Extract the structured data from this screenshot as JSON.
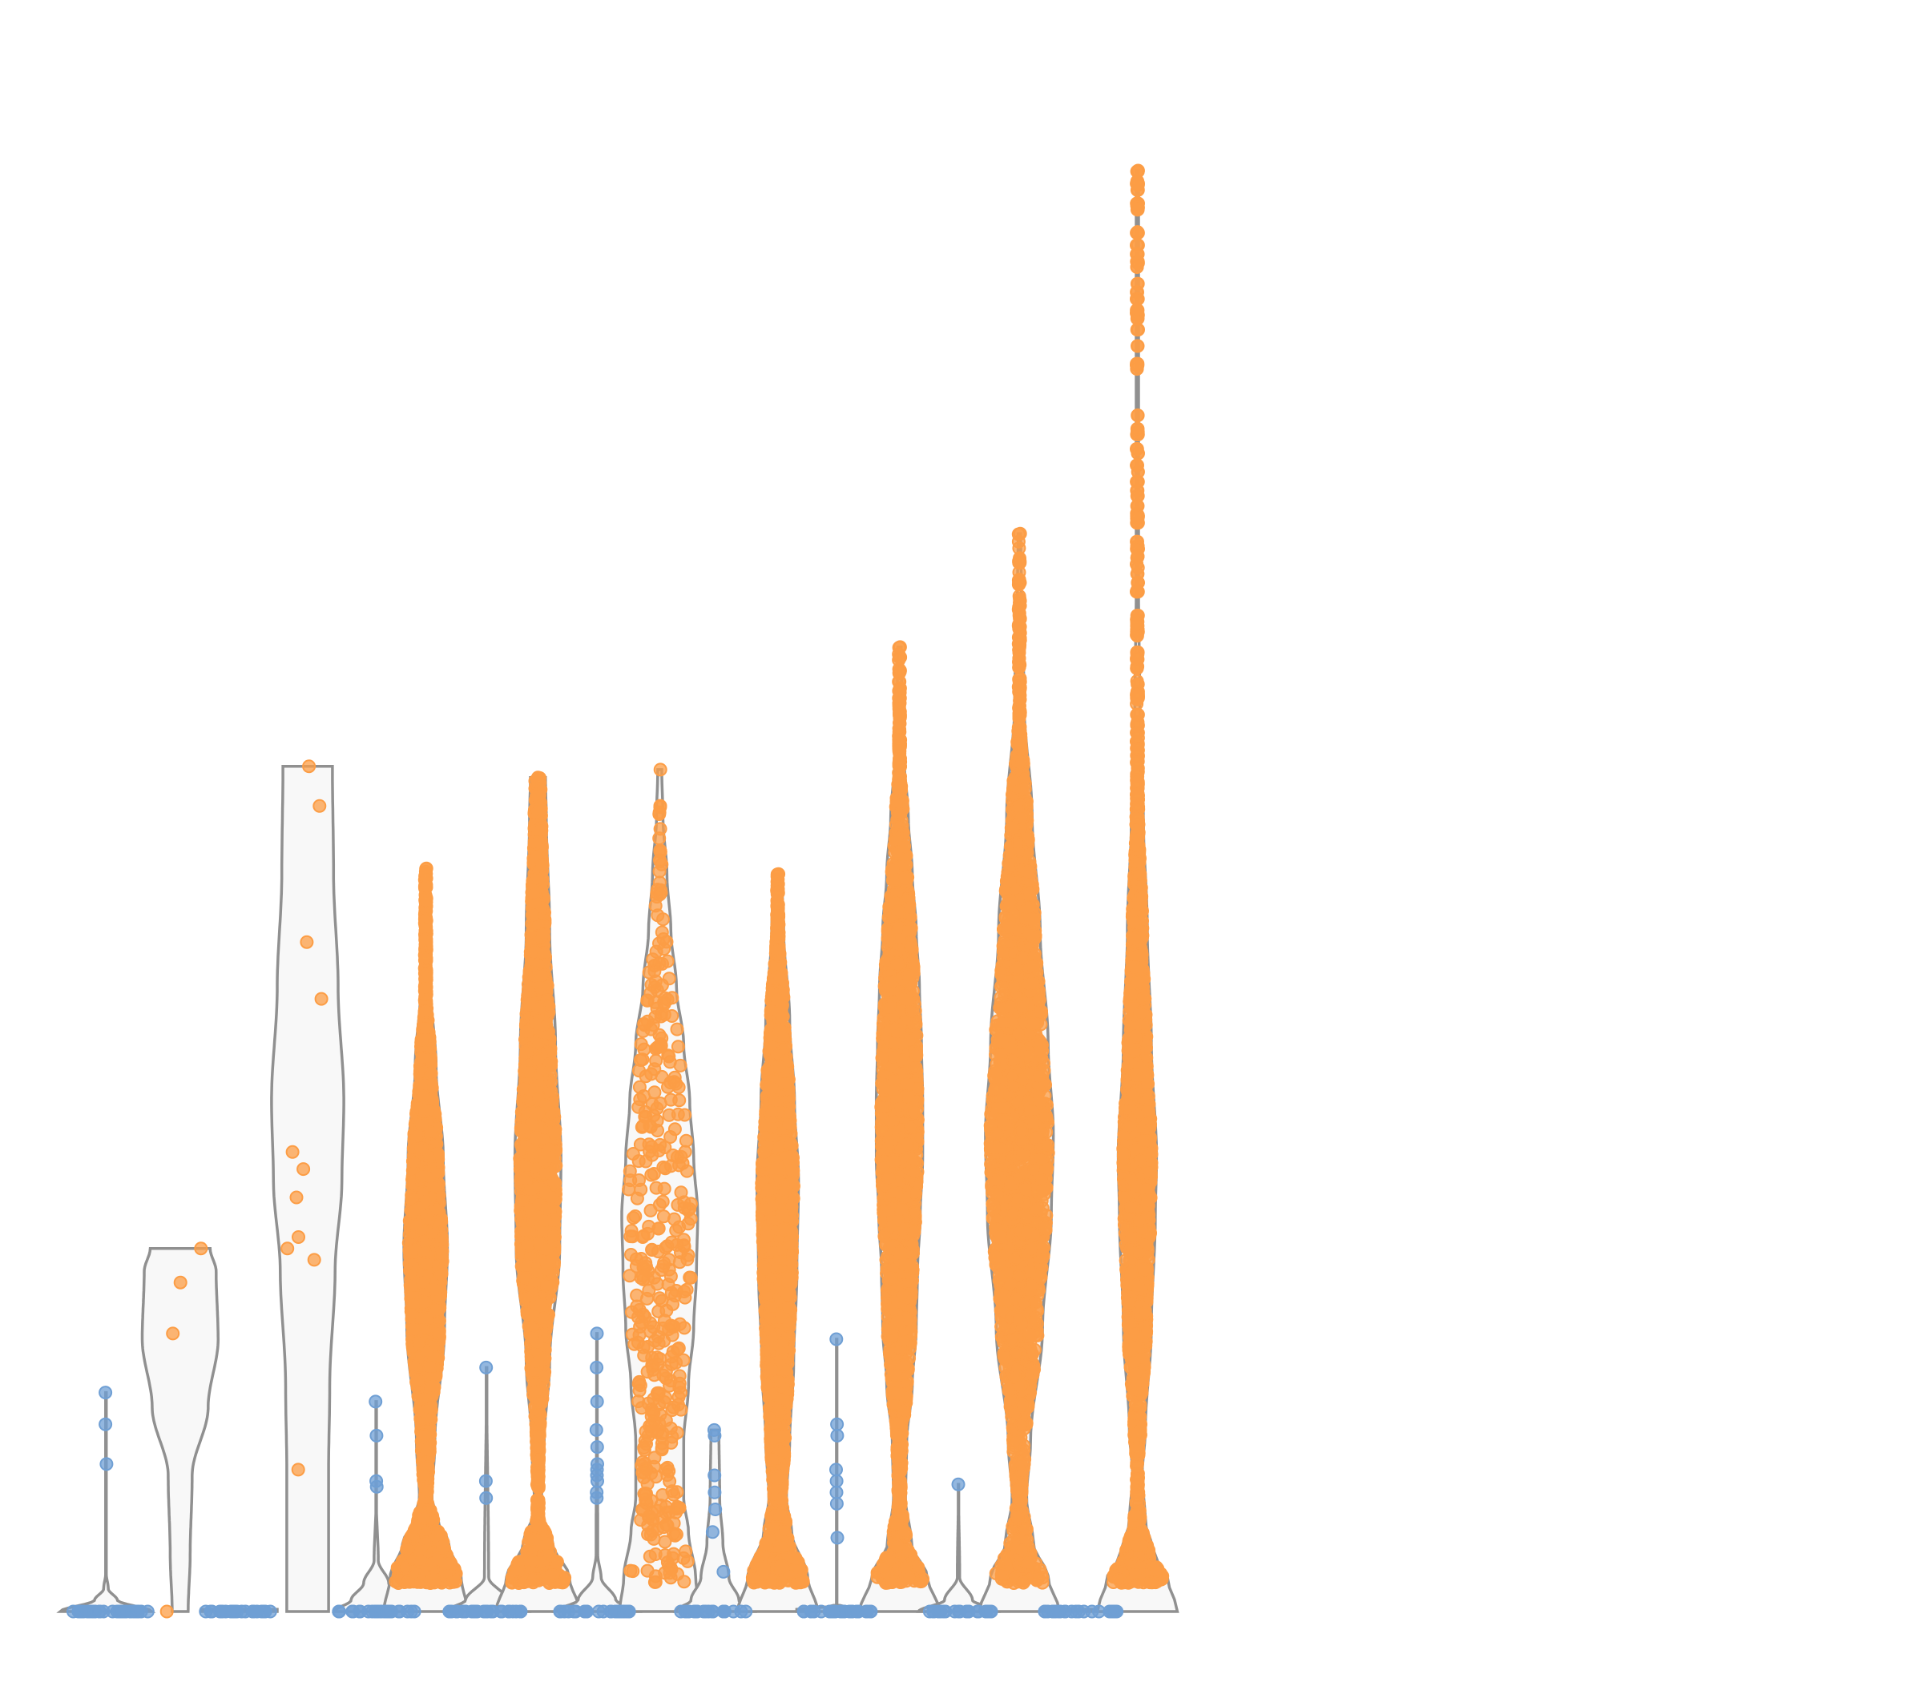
{
  "chart_data": {
    "type": "violin",
    "title": "",
    "xlabel": "",
    "ylabel": "",
    "ylim": [
      0,
      13
    ],
    "grid": false,
    "legend": "none",
    "colors": {
      "blue": "#6f9fd4",
      "orange": "#fc9d45"
    },
    "groups": [
      {
        "center": 1.1,
        "half_width": 1.2,
        "max": 1.93,
        "kde": [
          [
            0,
            1.0
          ],
          [
            0.1,
            0.25
          ],
          [
            0.2,
            0.05
          ],
          [
            0.35,
            0.0
          ],
          [
            1.93,
            0.0
          ]
        ],
        "color": "blue",
        "points": [
          0,
          0,
          0,
          0,
          0,
          0,
          0,
          0,
          0,
          0,
          0,
          0,
          0,
          0,
          0,
          0,
          0,
          0,
          0,
          0,
          0,
          0,
          0,
          0,
          0,
          0,
          0,
          0,
          0,
          0,
          1.3,
          1.65,
          1.93
        ]
      },
      {
        "center": 3.05,
        "half_width": 1.05,
        "max": 3.2,
        "kde": [
          [
            0,
            0.2
          ],
          [
            0.5,
            0.25
          ],
          [
            1.2,
            0.3
          ],
          [
            1.8,
            0.7
          ],
          [
            2.4,
            0.95
          ],
          [
            3.0,
            0.9
          ],
          [
            3.2,
            0.75
          ]
        ],
        "color": "orange",
        "points": [
          0,
          2.45,
          2.9,
          3.2
        ]
      },
      {
        "center": 4.6,
        "half_width": 1.0,
        "max": 0.02,
        "kde": [
          [
            0,
            1.0
          ],
          [
            0.02,
            1.0
          ]
        ],
        "color": "blue",
        "points": [
          0,
          0,
          0,
          0,
          0,
          0,
          0,
          0,
          0,
          0,
          0,
          0,
          0,
          0,
          0,
          0,
          0,
          0,
          0,
          0,
          0,
          0,
          0,
          0
        ]
      },
      {
        "center": 6.4,
        "half_width": 1.0,
        "max": 7.45,
        "kde": [
          [
            1.25,
            0.55
          ],
          [
            2.0,
            0.58
          ],
          [
            3.0,
            0.72
          ],
          [
            3.8,
            0.9
          ],
          [
            4.5,
            0.95
          ],
          [
            5.5,
            0.8
          ],
          [
            6.5,
            0.68
          ],
          [
            7.45,
            0.65
          ]
        ],
        "color": "orange",
        "points": [
          1.25,
          3.1,
          3.2,
          3.3,
          3.65,
          3.9,
          4.05,
          5.4,
          5.9,
          7.45,
          7.1
        ]
      },
      {
        "center": 8.2,
        "half_width": 1.1,
        "max": 1.85,
        "kde": [
          [
            0,
            1.0
          ],
          [
            0.1,
            0.6
          ],
          [
            0.25,
            0.3
          ],
          [
            0.45,
            0.05
          ],
          [
            1.0,
            0.0
          ],
          [
            1.85,
            0.0
          ]
        ],
        "color": "blue",
        "points": [
          0,
          0,
          0,
          0,
          0,
          0,
          0,
          0,
          0,
          0,
          0,
          0,
          0,
          0,
          0,
          0,
          0,
          0,
          0,
          0,
          0,
          0,
          0,
          0,
          0,
          0,
          0,
          1.1,
          1.15,
          1.55,
          1.85
        ]
      },
      {
        "center": 9.5,
        "half_width": 1.1,
        "max": 6.55,
        "kde": [
          [
            0,
            1.0
          ],
          [
            0.3,
            0.85
          ],
          [
            0.6,
            0.55
          ],
          [
            0.8,
            0.3
          ],
          [
            1.0,
            0.15
          ],
          [
            1.5,
            0.22
          ],
          [
            2.5,
            0.45
          ],
          [
            3.2,
            0.52
          ],
          [
            4.0,
            0.42
          ],
          [
            4.8,
            0.25
          ],
          [
            5.5,
            0.12
          ],
          [
            6.0,
            0.08
          ],
          [
            6.55,
            0.05
          ]
        ],
        "color": "orange",
        "points": "dense"
      },
      {
        "center": 11.1,
        "half_width": 1.1,
        "max": 2.15,
        "kde": [
          [
            0,
            1.0
          ],
          [
            0.1,
            0.5
          ],
          [
            0.3,
            0.05
          ],
          [
            2.15,
            0.0
          ]
        ],
        "color": "blue",
        "points": [
          0,
          0,
          0,
          0,
          0,
          0,
          0,
          0,
          0,
          0,
          0,
          0,
          0,
          0,
          0,
          0,
          0,
          0,
          0,
          0,
          0,
          0,
          0,
          0,
          0,
          0,
          0,
          1.0,
          1.15,
          2.15
        ]
      },
      {
        "center": 12.45,
        "half_width": 1.1,
        "max": 7.35,
        "kde": [
          [
            0,
            1.0
          ],
          [
            0.3,
            0.75
          ],
          [
            0.6,
            0.35
          ],
          [
            0.9,
            0.08
          ],
          [
            1.5,
            0.15
          ],
          [
            2.2,
            0.28
          ],
          [
            3.2,
            0.52
          ],
          [
            4.0,
            0.55
          ],
          [
            5.0,
            0.42
          ],
          [
            6.0,
            0.28
          ],
          [
            7.0,
            0.2
          ],
          [
            7.35,
            0.18
          ]
        ],
        "color": "orange",
        "points": "dense"
      },
      {
        "center": 14.0,
        "half_width": 1.1,
        "max": 2.45,
        "kde": [
          [
            0,
            1.0
          ],
          [
            0.1,
            0.45
          ],
          [
            0.3,
            0.1
          ],
          [
            0.5,
            0.02
          ],
          [
            2.45,
            0.0
          ]
        ],
        "color": "blue",
        "points": [
          0,
          0,
          0,
          0,
          0,
          0,
          0,
          0,
          0,
          0,
          0,
          0,
          0,
          0,
          0,
          0,
          0,
          0,
          0,
          0,
          0,
          0,
          0,
          0,
          0,
          0,
          0,
          1.0,
          1.05,
          1.15,
          1.2,
          1.25,
          1.3,
          1.45,
          1.6,
          1.85,
          2.15,
          2.45
        ]
      },
      {
        "center": 15.65,
        "half_width": 1.05,
        "max": 7.42,
        "kde": [
          [
            0,
            1.0
          ],
          [
            0.3,
            0.9
          ],
          [
            0.7,
            0.72
          ],
          [
            1.0,
            0.6
          ],
          [
            1.5,
            0.6
          ],
          [
            2.0,
            0.72
          ],
          [
            2.5,
            0.85
          ],
          [
            3.0,
            0.92
          ],
          [
            3.5,
            0.95
          ],
          [
            4.0,
            0.85
          ],
          [
            4.5,
            0.75
          ],
          [
            5.0,
            0.6
          ],
          [
            5.5,
            0.42
          ],
          [
            6.0,
            0.28
          ],
          [
            6.5,
            0.18
          ],
          [
            7.0,
            0.08
          ],
          [
            7.42,
            0.05
          ]
        ],
        "color": "orange",
        "points": "dense-sparse"
      },
      {
        "center": 17.1,
        "half_width": 1.05,
        "max": 1.6,
        "kde": [
          [
            0,
            1.0
          ],
          [
            0.1,
            0.6
          ],
          [
            0.3,
            0.35
          ],
          [
            0.6,
            0.2
          ],
          [
            1.0,
            0.12
          ],
          [
            1.6,
            0.1
          ]
        ],
        "color": "blue",
        "points": [
          0,
          0,
          0,
          0,
          0,
          0,
          0,
          0,
          0,
          0,
          0,
          0,
          0,
          0,
          0,
          0,
          0,
          0,
          0,
          0,
          0,
          0.35,
          0.7,
          0.9,
          1.05,
          1.2,
          1.55,
          1.6
        ]
      },
      {
        "center": 18.75,
        "half_width": 1.05,
        "max": 6.5,
        "kde": [
          [
            0,
            1.0
          ],
          [
            0.3,
            0.75
          ],
          [
            0.7,
            0.35
          ],
          [
            1.0,
            0.22
          ],
          [
            1.5,
            0.3
          ],
          [
            2.2,
            0.4
          ],
          [
            3.0,
            0.48
          ],
          [
            3.8,
            0.52
          ],
          [
            4.5,
            0.42
          ],
          [
            5.2,
            0.3
          ],
          [
            6.0,
            0.15
          ],
          [
            6.5,
            0.1
          ]
        ],
        "color": "orange",
        "points": "dense"
      },
      {
        "center": 20.3,
        "half_width": 1.05,
        "max": 2.4,
        "kde": [
          [
            0,
            1.0
          ],
          [
            0.02,
            1.0
          ],
          [
            0.05,
            0.0
          ],
          [
            2.4,
            0.0
          ]
        ],
        "color": "blue",
        "points": [
          0,
          0,
          0,
          0,
          0,
          0,
          0,
          0,
          0,
          0,
          0,
          0,
          0,
          0,
          0,
          0,
          0,
          0,
          0,
          0,
          0,
          0,
          0,
          0,
          0,
          0,
          0,
          0,
          0,
          0,
          0.65,
          0.95,
          1.05,
          1.15,
          1.25,
          1.55,
          1.65,
          2.4
        ]
      },
      {
        "center": 21.95,
        "half_width": 1.05,
        "max": 8.5,
        "kde": [
          [
            0,
            1.0
          ],
          [
            0.3,
            0.7
          ],
          [
            0.6,
            0.3
          ],
          [
            1.0,
            0.15
          ],
          [
            1.5,
            0.18
          ],
          [
            2.0,
            0.32
          ],
          [
            2.5,
            0.42
          ],
          [
            3.0,
            0.45
          ],
          [
            3.5,
            0.52
          ],
          [
            4.0,
            0.58
          ],
          [
            4.5,
            0.58
          ],
          [
            5.0,
            0.55
          ],
          [
            5.5,
            0.5
          ],
          [
            6.0,
            0.42
          ],
          [
            6.5,
            0.32
          ],
          [
            7.0,
            0.22
          ],
          [
            7.5,
            0.12
          ],
          [
            8.0,
            0.06
          ],
          [
            8.5,
            0.04
          ]
        ],
        "color": "orange",
        "points": "dense"
      },
      {
        "center": 23.5,
        "half_width": 1.05,
        "max": 1.12,
        "kde": [
          [
            0,
            1.0
          ],
          [
            0.1,
            0.35
          ],
          [
            0.3,
            0.03
          ],
          [
            1.12,
            0.0
          ]
        ],
        "color": "blue",
        "points": [
          0,
          0,
          0,
          0,
          0,
          0,
          0,
          0,
          0,
          0,
          0,
          0,
          0,
          0,
          0,
          0,
          0,
          0,
          0,
          0,
          0,
          1.12
        ]
      },
      {
        "center": 25.1,
        "half_width": 1.05,
        "max": 9.5,
        "kde": [
          [
            0,
            1.0
          ],
          [
            0.3,
            0.72
          ],
          [
            0.6,
            0.35
          ],
          [
            1.0,
            0.18
          ],
          [
            1.5,
            0.28
          ],
          [
            2.5,
            0.58
          ],
          [
            3.5,
            0.8
          ],
          [
            4.2,
            0.85
          ],
          [
            5.0,
            0.72
          ],
          [
            6.0,
            0.52
          ],
          [
            7.0,
            0.32
          ],
          [
            8.0,
            0.12
          ],
          [
            9.0,
            0.05
          ],
          [
            9.5,
            0.03
          ]
        ],
        "color": "orange",
        "points": "dense"
      },
      {
        "center": 26.7,
        "half_width": 1.05,
        "max": 0.02,
        "kde": [
          [
            0,
            1.0
          ],
          [
            0.02,
            1.0
          ]
        ],
        "color": "blue",
        "points": [
          0,
          0,
          0,
          0,
          0,
          0,
          0,
          0,
          0,
          0,
          0,
          0,
          0,
          0,
          0,
          0,
          0,
          0,
          0,
          0,
          0,
          0,
          0,
          0
        ]
      },
      {
        "center": 28.2,
        "half_width": 1.05,
        "max": 12.7,
        "kde": [
          [
            0,
            1.0
          ],
          [
            0.3,
            0.75
          ],
          [
            0.5,
            0.42
          ],
          [
            0.8,
            0.2
          ],
          [
            1.2,
            0.12
          ],
          [
            1.6,
            0.2
          ],
          [
            2.5,
            0.35
          ],
          [
            3.5,
            0.45
          ],
          [
            4.0,
            0.48
          ],
          [
            5.0,
            0.35
          ],
          [
            6.0,
            0.25
          ],
          [
            7.0,
            0.15
          ],
          [
            7.5,
            0.1
          ],
          [
            8.0,
            0.06
          ],
          [
            9.0,
            0.03
          ],
          [
            12.7,
            0.03
          ]
        ],
        "color": "orange",
        "points": "dense-tail"
      }
    ]
  }
}
